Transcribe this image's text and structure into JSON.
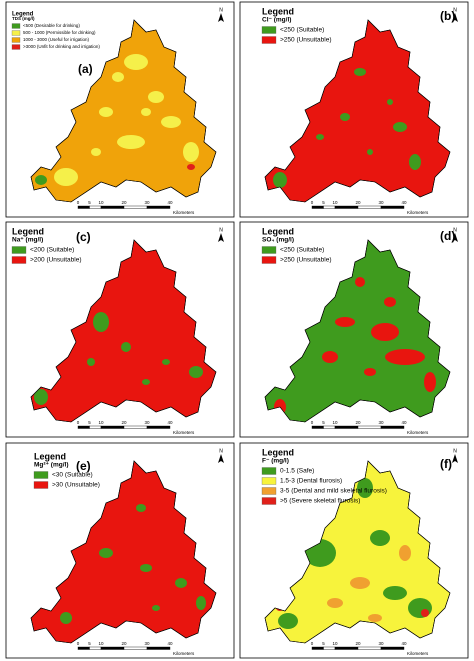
{
  "panels": [
    {
      "label": "(a)",
      "legend_title": "Legend",
      "parameter": "TDS (mg/l)",
      "items": [
        {
          "label": "<500 (Desirable for drinking)",
          "color": "#3f9b1e"
        },
        {
          "label": "500 - 1000 (Permissible for drinking)",
          "color": "#f5f04a"
        },
        {
          "label": "1000 - 3000 (Useful for irrigation)",
          "color": "#f0a30a"
        },
        {
          "label": ">3000 (Unfit for drinking and irrigation)",
          "color": "#e0201a"
        }
      ]
    },
    {
      "label": "(b)",
      "legend_title": "Legend",
      "parameter": "Cl⁻ (mg/l)",
      "items": [
        {
          "label": "<250 (Suitable)",
          "color": "#3f9b1e"
        },
        {
          "label": ">250 (Unsuitable)",
          "color": "#e8150f"
        }
      ]
    },
    {
      "label": "(c)",
      "legend_title": "Legend",
      "parameter": "Na⁺ (mg/l)",
      "items": [
        {
          "label": "<200 (Suitable)",
          "color": "#3f9b1e"
        },
        {
          "label": ">200 (Unsuitable)",
          "color": "#e8150f"
        }
      ]
    },
    {
      "label": "(d)",
      "legend_title": "Legend",
      "parameter": "SO₄ (mg/l)",
      "items": [
        {
          "label": "<250 (Suitable)",
          "color": "#3f9b1e"
        },
        {
          "label": ">250 (Unsuitable)",
          "color": "#e8150f"
        }
      ]
    },
    {
      "label": "(e)",
      "legend_title": "Legend",
      "parameter": "Mg²⁺ (mg/l)",
      "items": [
        {
          "label": "<30 (Suitable)",
          "color": "#3f9b1e"
        },
        {
          "label": ">30 (Unsuitable)",
          "color": "#e8150f"
        }
      ]
    },
    {
      "label": "(f)",
      "legend_title": "Legend",
      "parameter": "F⁻ (mg/l)",
      "items": [
        {
          "label": "0-1.5 (Safe)",
          "color": "#3f9b1e"
        },
        {
          "label": "1.5-3 (Dental flurosis)",
          "color": "#f7f33c"
        },
        {
          "label": "3-5 (Dental and mild skeletal flurosis)",
          "color": "#f0a030"
        },
        {
          "label": ">5 (Severe skeletal flurosis)",
          "color": "#e0201a"
        }
      ]
    }
  ],
  "scale_bar": {
    "ticks": [
      "0",
      "5",
      "10",
      "20",
      "30",
      "40"
    ],
    "unit": "Kilometers"
  },
  "north": "N"
}
